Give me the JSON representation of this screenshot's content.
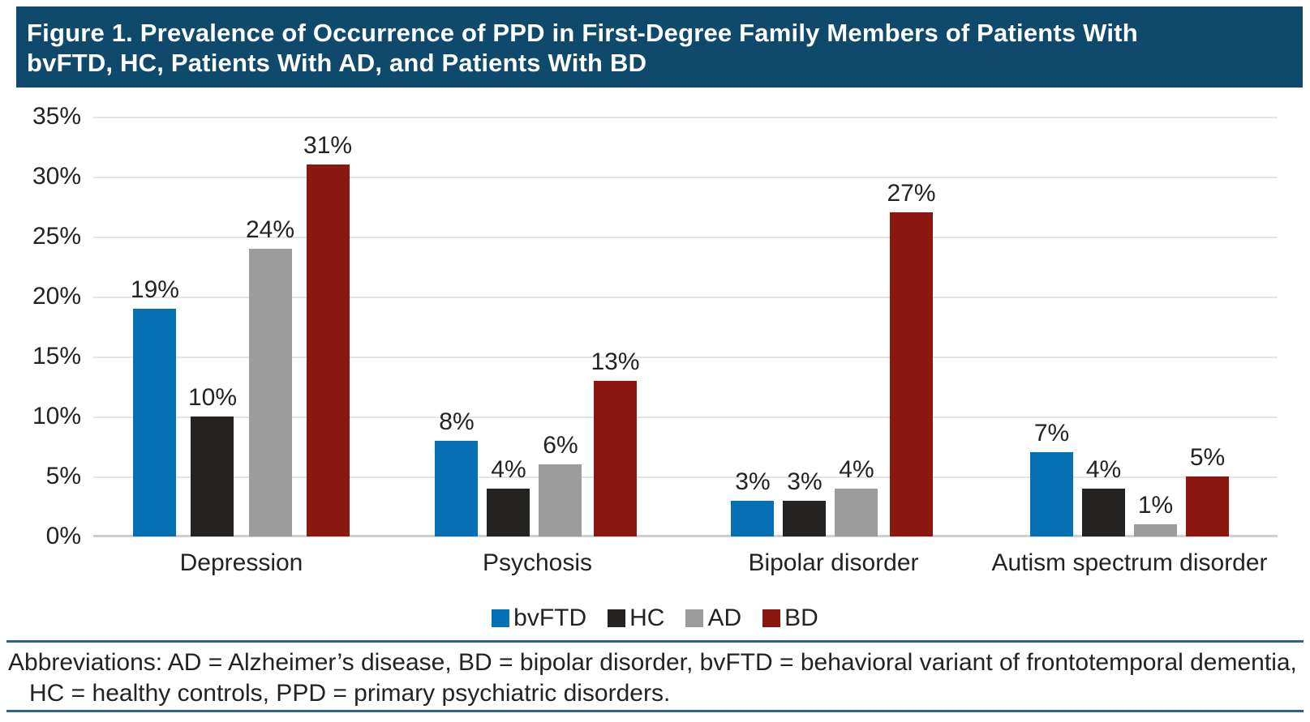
{
  "figure": {
    "title_line1": "Figure 1. Prevalence of Occurrence of PPD in First-Degree Family Members of Patients With",
    "title_line2": "bvFTD, HC, Patients With AD, and Patients With BD",
    "title_bg": "#0f4a6d",
    "title_color": "#ffffff"
  },
  "chart_data": {
    "type": "bar",
    "title": "Figure 1. Prevalence of Occurrence of PPD in First-Degree Family Members of Patients With bvFTD, HC, Patients With AD, and Patients With BD",
    "categories": [
      "Depression",
      "Psychosis",
      "Bipolar disorder",
      "Autism spectrum disorder"
    ],
    "series": [
      {
        "name": "bvFTD",
        "color": "#0571b4",
        "values": [
          19,
          8,
          3,
          7
        ]
      },
      {
        "name": "HC",
        "color": "#242321",
        "values": [
          10,
          4,
          3,
          4
        ]
      },
      {
        "name": "AD",
        "color": "#9c9c9c",
        "values": [
          24,
          6,
          4,
          1
        ]
      },
      {
        "name": "BD",
        "color": "#8b1711",
        "values": [
          31,
          13,
          27,
          5
        ]
      }
    ],
    "value_suffix": "%",
    "data_labels": true,
    "xlabel": "",
    "ylabel": "",
    "ylim": [
      0,
      35
    ],
    "y_tick_step": 5,
    "y_tick_labels": [
      "35%",
      "30%",
      "25%",
      "20%",
      "15%",
      "10%",
      "5%",
      "0%"
    ],
    "grid": true,
    "gridline_color": "#e4e4e4",
    "axis_line_color": "#cfcfcf",
    "legend_position": "bottom",
    "legend_labels": [
      "bvFTD",
      "HC",
      "AD",
      "BD"
    ]
  },
  "footer": {
    "line1": "Abbreviations: AD = Alzheimer’s disease, BD = bipolar disorder, bvFTD = behavioral variant of frontotemporal dementia,",
    "line2": "HC = healthy controls, PPD = primary psychiatric disorders.",
    "rule_color": "#2d6587"
  }
}
